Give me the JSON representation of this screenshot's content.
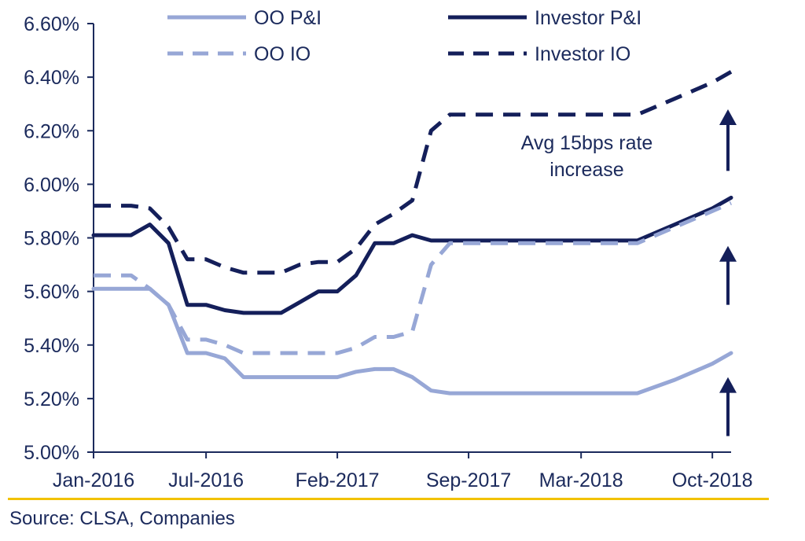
{
  "chart_data": {
    "type": "line",
    "title": "",
    "xlabel": "",
    "ylabel": "",
    "x_range": [
      "2016-01",
      "2018-11"
    ],
    "x_ticks": [
      "Jan-2016",
      "Jul-2016",
      "Feb-2017",
      "Sep-2017",
      "Mar-2018",
      "Oct-2018"
    ],
    "x_tick_dates": [
      "2016-01",
      "2016-07",
      "2017-02",
      "2017-09",
      "2018-03",
      "2018-10"
    ],
    "ylim": [
      5.0,
      6.6
    ],
    "y_ticks": [
      "5.00%",
      "5.20%",
      "5.40%",
      "5.60%",
      "5.80%",
      "6.00%",
      "6.20%",
      "6.40%",
      "6.60%"
    ],
    "y_tick_values": [
      5.0,
      5.2,
      5.4,
      5.6,
      5.8,
      6.0,
      6.2,
      6.4,
      6.6
    ],
    "grid": false,
    "legend_position": "top",
    "series": [
      {
        "name": "OO P&I",
        "color": "#97a7d6",
        "dash": "solid",
        "points": [
          [
            "2016-01",
            5.61
          ],
          [
            "2016-02",
            5.61
          ],
          [
            "2016-03",
            5.61
          ],
          [
            "2016-04",
            5.61
          ],
          [
            "2016-05",
            5.55
          ],
          [
            "2016-06",
            5.37
          ],
          [
            "2016-07",
            5.37
          ],
          [
            "2016-08",
            5.35
          ],
          [
            "2016-09",
            5.28
          ],
          [
            "2016-10",
            5.28
          ],
          [
            "2016-11",
            5.28
          ],
          [
            "2016-12",
            5.28
          ],
          [
            "2017-01",
            5.28
          ],
          [
            "2017-02",
            5.28
          ],
          [
            "2017-03",
            5.3
          ],
          [
            "2017-04",
            5.31
          ],
          [
            "2017-05",
            5.31
          ],
          [
            "2017-06",
            5.28
          ],
          [
            "2017-07",
            5.23
          ],
          [
            "2017-08",
            5.22
          ],
          [
            "2018-06",
            5.22
          ],
          [
            "2018-08",
            5.27
          ],
          [
            "2018-10",
            5.33
          ],
          [
            "2018-11",
            5.37
          ]
        ]
      },
      {
        "name": "Investor P&I",
        "color": "#141f5a",
        "dash": "solid",
        "points": [
          [
            "2016-01",
            5.81
          ],
          [
            "2016-02",
            5.81
          ],
          [
            "2016-03",
            5.81
          ],
          [
            "2016-04",
            5.85
          ],
          [
            "2016-05",
            5.78
          ],
          [
            "2016-06",
            5.55
          ],
          [
            "2016-07",
            5.55
          ],
          [
            "2016-08",
            5.53
          ],
          [
            "2016-09",
            5.52
          ],
          [
            "2016-10",
            5.52
          ],
          [
            "2016-11",
            5.52
          ],
          [
            "2016-12",
            5.56
          ],
          [
            "2017-01",
            5.6
          ],
          [
            "2017-02",
            5.6
          ],
          [
            "2017-03",
            5.66
          ],
          [
            "2017-04",
            5.78
          ],
          [
            "2017-05",
            5.78
          ],
          [
            "2017-06",
            5.81
          ],
          [
            "2017-07",
            5.79
          ],
          [
            "2017-08",
            5.79
          ],
          [
            "2018-06",
            5.79
          ],
          [
            "2018-08",
            5.85
          ],
          [
            "2018-10",
            5.91
          ],
          [
            "2018-11",
            5.95
          ]
        ]
      },
      {
        "name": "OO IO",
        "color": "#97a7d6",
        "dash": "dashed",
        "points": [
          [
            "2016-01",
            5.66
          ],
          [
            "2016-02",
            5.66
          ],
          [
            "2016-03",
            5.66
          ],
          [
            "2016-04",
            5.61
          ],
          [
            "2016-05",
            5.55
          ],
          [
            "2016-06",
            5.42
          ],
          [
            "2016-07",
            5.42
          ],
          [
            "2016-08",
            5.4
          ],
          [
            "2016-09",
            5.37
          ],
          [
            "2016-10",
            5.37
          ],
          [
            "2016-11",
            5.37
          ],
          [
            "2016-12",
            5.37
          ],
          [
            "2017-01",
            5.37
          ],
          [
            "2017-02",
            5.37
          ],
          [
            "2017-03",
            5.39
          ],
          [
            "2017-04",
            5.43
          ],
          [
            "2017-05",
            5.43
          ],
          [
            "2017-06",
            5.45
          ],
          [
            "2017-07",
            5.7
          ],
          [
            "2017-08",
            5.78
          ],
          [
            "2018-06",
            5.78
          ],
          [
            "2018-08",
            5.84
          ],
          [
            "2018-10",
            5.9
          ],
          [
            "2018-11",
            5.93
          ]
        ]
      },
      {
        "name": "Investor IO",
        "color": "#141f5a",
        "dash": "dashed",
        "points": [
          [
            "2016-01",
            5.92
          ],
          [
            "2016-02",
            5.92
          ],
          [
            "2016-03",
            5.92
          ],
          [
            "2016-04",
            5.91
          ],
          [
            "2016-05",
            5.84
          ],
          [
            "2016-06",
            5.72
          ],
          [
            "2016-07",
            5.72
          ],
          [
            "2016-08",
            5.69
          ],
          [
            "2016-09",
            5.67
          ],
          [
            "2016-10",
            5.67
          ],
          [
            "2016-11",
            5.67
          ],
          [
            "2016-12",
            5.7
          ],
          [
            "2017-01",
            5.71
          ],
          [
            "2017-02",
            5.71
          ],
          [
            "2017-03",
            5.76
          ],
          [
            "2017-04",
            5.85
          ],
          [
            "2017-05",
            5.89
          ],
          [
            "2017-06",
            5.94
          ],
          [
            "2017-07",
            6.2
          ],
          [
            "2017-08",
            6.26
          ],
          [
            "2018-06",
            6.26
          ],
          [
            "2018-08",
            6.32
          ],
          [
            "2018-10",
            6.38
          ],
          [
            "2018-11",
            6.42
          ]
        ]
      }
    ],
    "annotations": [
      {
        "text_lines": [
          "Avg 15bps rate",
          "increase"
        ],
        "anchor": [
          "2018-01",
          6.13
        ]
      }
    ],
    "arrows": [
      {
        "date": "2018-11",
        "from": 5.06,
        "to": 5.28
      },
      {
        "date": "2018-11",
        "from": 5.55,
        "to": 5.77
      },
      {
        "date": "2018-11",
        "from": 6.05,
        "to": 6.28
      }
    ]
  },
  "source": "Source: CLSA, Companies",
  "colors": {
    "text": "#1b2a5c",
    "axis": "#1b2a5c",
    "divider": "#f2c200",
    "arrow": "#141f5a"
  }
}
